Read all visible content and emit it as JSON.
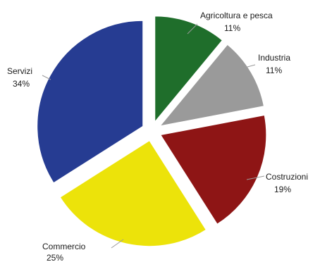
{
  "chart_data": {
    "type": "pie",
    "exploded": true,
    "legend": "none",
    "slices": [
      {
        "label": "Agricoltura e pesca",
        "value": 11,
        "pct_text": "11%",
        "color": "#1f6e2b"
      },
      {
        "label": "Industria",
        "value": 11,
        "pct_text": "11%",
        "color": "#9a9a9a"
      },
      {
        "label": "Costruzioni",
        "value": 19,
        "pct_text": "19%",
        "color": "#8e1515"
      },
      {
        "label": "Commercio",
        "value": 25,
        "pct_text": "25%",
        "color": "#ece30a"
      },
      {
        "label": "Servizi",
        "value": 34,
        "pct_text": "34%",
        "color": "#263c92"
      }
    ]
  }
}
